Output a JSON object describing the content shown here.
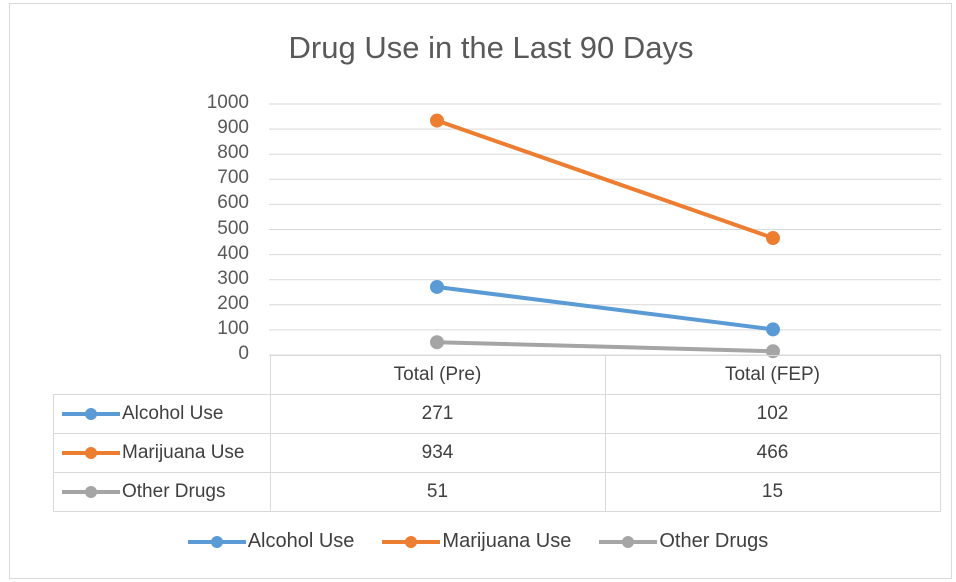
{
  "chart_data": {
    "type": "line",
    "title": "Drug Use in the Last 90 Days",
    "categories": [
      "Total (Pre)",
      "Total (FEP)"
    ],
    "series": [
      {
        "name": "Alcohol Use",
        "values": [
          271,
          102
        ],
        "color": "#5b9bd5"
      },
      {
        "name": "Marijuana Use",
        "values": [
          934,
          466
        ],
        "color": "#ed7d31"
      },
      {
        "name": "Other Drugs",
        "values": [
          51,
          15
        ],
        "color": "#a5a5a5"
      }
    ],
    "ylim": [
      0,
      1000
    ],
    "yticks": [
      0,
      100,
      200,
      300,
      400,
      500,
      600,
      700,
      800,
      900,
      1000
    ],
    "grid": true,
    "legend": "bottom",
    "data_table": true
  }
}
